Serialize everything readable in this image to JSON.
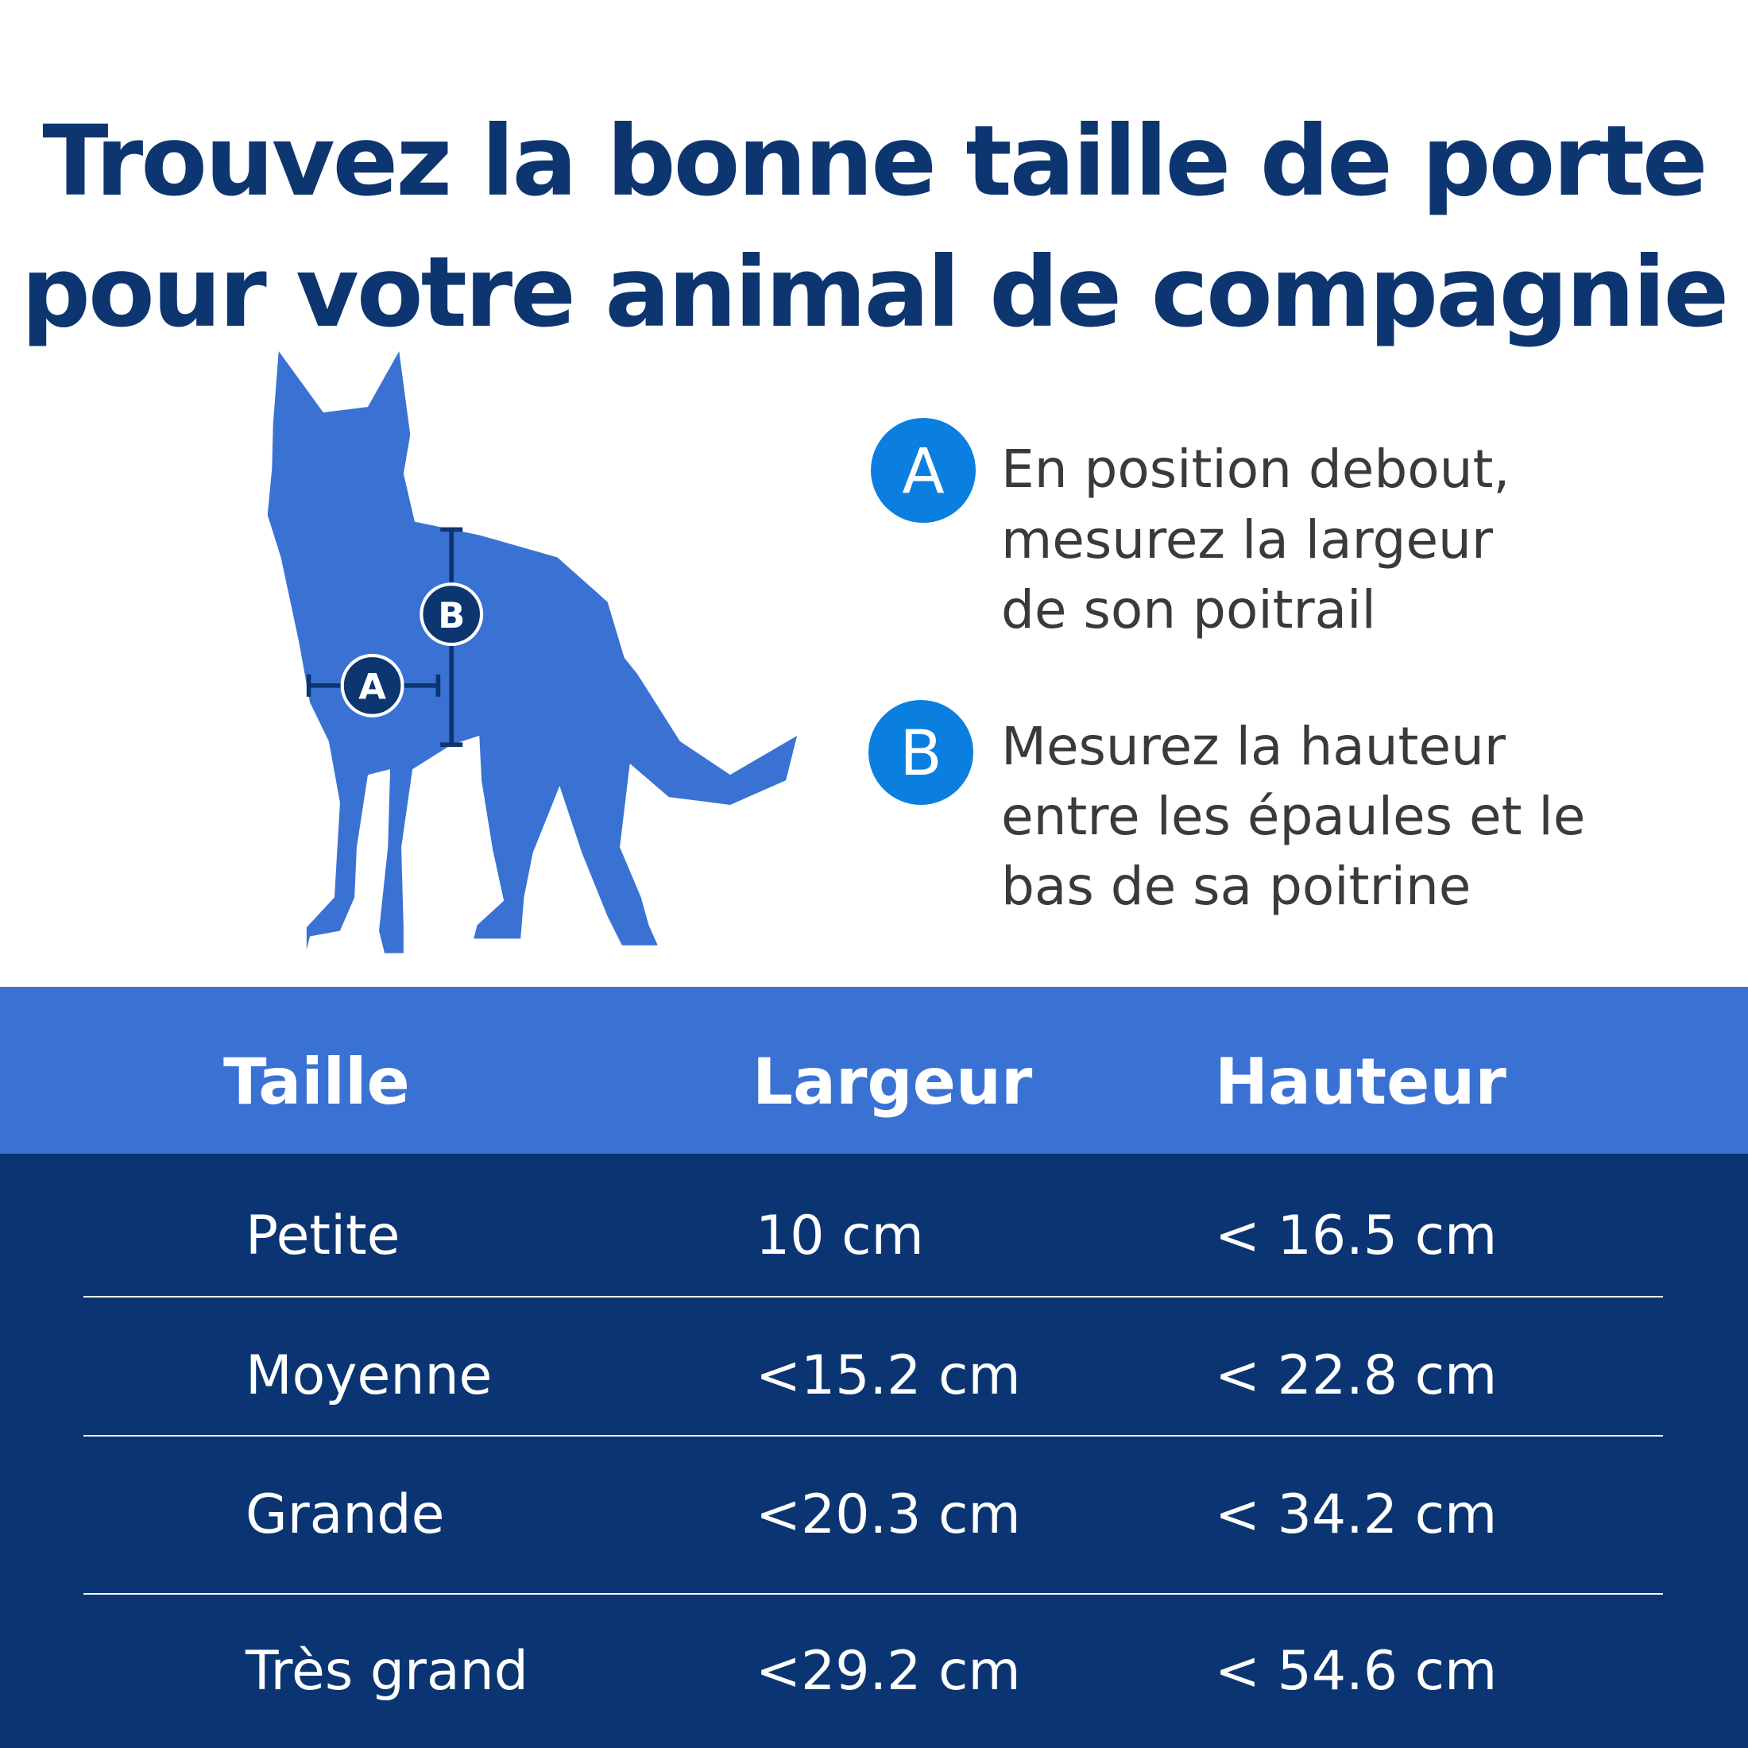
{
  "header": {
    "title_lines": [
      "Trouvez la bonne taille de porte",
      "pour votre animal de compagnie"
    ]
  },
  "legend": [
    {
      "letter": "A",
      "lines": [
        "En position debout,",
        "mesurez la largeur",
        "de son poitrail"
      ]
    },
    {
      "letter": "B",
      "lines": [
        "Mesurez la hauteur",
        "entre les épaules et le",
        "bas de sa poitrine"
      ]
    }
  ],
  "table": {
    "header": [
      "Taille",
      "Largeur",
      "Hauteur"
    ],
    "rows": [
      [
        "Petite",
        "10 cm",
        "< 16.5 cm"
      ],
      [
        "Moyenne",
        "<15.2 cm",
        "< 22.8 cm"
      ],
      [
        "Grande",
        "<20.3 cm",
        "< 34.2 cm"
      ],
      [
        "Très grand",
        "<29.2 cm",
        "< 54.6 cm"
      ]
    ]
  }
}
